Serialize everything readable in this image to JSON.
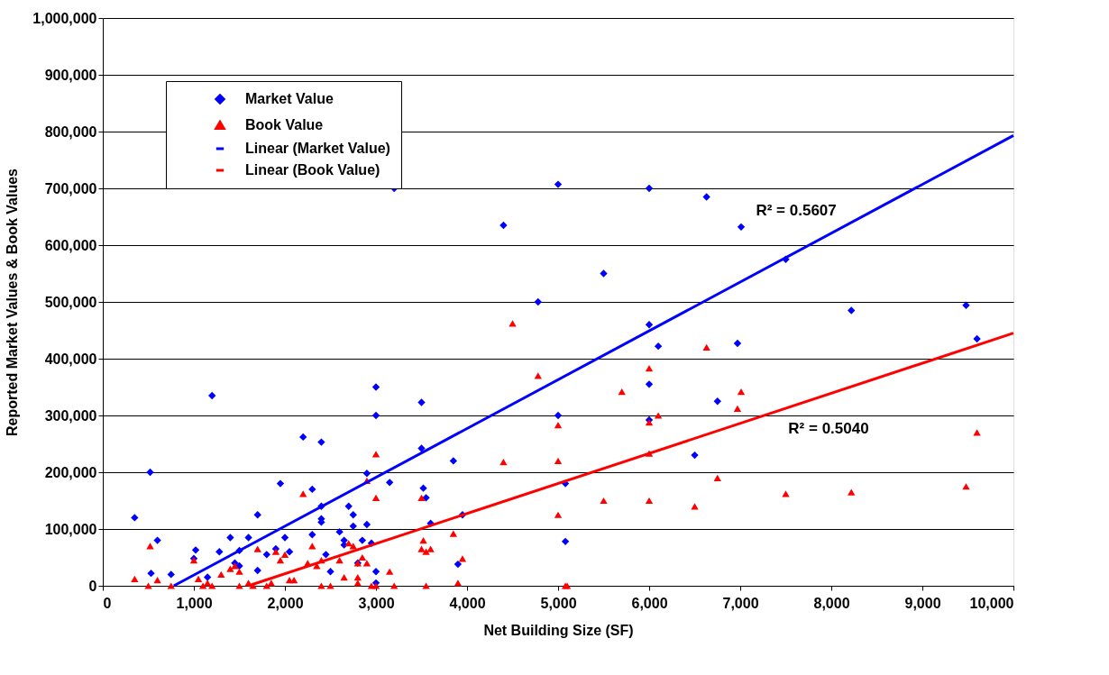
{
  "chart_data": {
    "type": "scatter",
    "xlabel": "Net Building Size (SF)",
    "ylabel": "Reported Market Values & Book Values",
    "xlim": [
      0,
      10000
    ],
    "xticks": [
      0,
      {
        "value": 1000,
        "label": "1,000"
      },
      {
        "value": 2000,
        "label": "2,000"
      },
      {
        "value": 3000,
        "label": "3,000"
      },
      {
        "value": 4000,
        "label": "4,000"
      },
      {
        "value": 5000,
        "label": "5,000"
      },
      {
        "value": 6000,
        "label": "6,000"
      },
      {
        "value": 7000,
        "label": "7,000"
      },
      {
        "value": 8000,
        "label": "8,000"
      },
      {
        "value": 9000,
        "label": "9,000"
      },
      {
        "value": 10000,
        "label": "10,000"
      }
    ],
    "ylim": [
      0,
      1000000
    ],
    "yticks": [
      0,
      {
        "value": 100000,
        "label": "100,000"
      },
      {
        "value": 200000,
        "label": "200,000"
      },
      {
        "value": 300000,
        "label": "300,000"
      },
      {
        "value": 400000,
        "label": "400,000"
      },
      {
        "value": 500000,
        "label": "500,000"
      },
      {
        "value": 600000,
        "label": "600,000"
      },
      {
        "value": 700000,
        "label": "700,000"
      },
      {
        "value": 800000,
        "label": "800,000"
      },
      {
        "value": 900000,
        "label": "900,000"
      },
      {
        "value": 1000000,
        "label": "1,000,000"
      }
    ],
    "grid": "y",
    "legend": "top left",
    "annotations": [
      "R² = 0.5607",
      "R² = 0.5040"
    ],
    "series": [
      {
        "name": "Market Value",
        "marker": "diamond",
        "color": "#0000ff",
        "x": [
          350,
          520,
          530,
          600,
          750,
          1000,
          1020,
          1200,
          1150,
          1280,
          1400,
          1450,
          1500,
          1500,
          1600,
          1700,
          1700,
          1800,
          1900,
          1950,
          2000,
          2050,
          2200,
          2300,
          2300,
          2400,
          2400,
          2400,
          2400,
          2450,
          2500,
          2600,
          2650,
          2650,
          2700,
          2750,
          2750,
          2800,
          2850,
          2900,
          2900,
          2950,
          3000,
          3000,
          3000,
          3000,
          3150,
          3200,
          3500,
          3500,
          3520,
          3550,
          3600,
          3850,
          3900,
          3950,
          4400,
          4780,
          5000,
          5000,
          5080,
          5080,
          5500,
          6000,
          6000,
          6000,
          6000,
          6100,
          6630,
          6970,
          7010,
          6750,
          6500,
          7500,
          8220,
          9480,
          9600
        ],
        "values": [
          120000,
          200000,
          22000,
          80000,
          20000,
          48000,
          63000,
          335000,
          15000,
          60000,
          85000,
          40000,
          35000,
          62000,
          85000,
          27000,
          125000,
          55000,
          65000,
          180000,
          85000,
          60000,
          262000,
          170000,
          90000,
          253000,
          140000,
          118000,
          112000,
          55000,
          25000,
          95000,
          80000,
          72000,
          140000,
          125000,
          105000,
          40000,
          80000,
          198000,
          108000,
          75000,
          350000,
          300000,
          25000,
          5000,
          182000,
          700000,
          323000,
          242000,
          172000,
          155000,
          110000,
          220000,
          38000,
          125000,
          635000,
          500000,
          707000,
          300000,
          78000,
          180000,
          550000,
          700000,
          460000,
          355000,
          292000,
          422000,
          685000,
          427000,
          632000,
          325000,
          230000,
          575000,
          485000,
          494000,
          435000
        ]
      },
      {
        "name": "Book Value",
        "marker": "triangle",
        "color": "#ff0000",
        "x": [
          350,
          500,
          520,
          600,
          750,
          1000,
          1050,
          1100,
          1150,
          1200,
          1300,
          1400,
          1450,
          1500,
          1500,
          1600,
          1650,
          1700,
          1800,
          1850,
          1900,
          1950,
          2000,
          2050,
          2100,
          2200,
          2250,
          2300,
          2350,
          2400,
          2400,
          2500,
          2600,
          2650,
          2700,
          2750,
          2800,
          2800,
          2800,
          2850,
          2900,
          2900,
          2950,
          3000,
          3000,
          3000,
          3150,
          3200,
          3500,
          3520,
          3500,
          3550,
          3600,
          3550,
          3850,
          3900,
          3950,
          4400,
          4500,
          4780,
          5000,
          5000,
          5000,
          5080,
          5100,
          5500,
          5700,
          6000,
          6000,
          6000,
          6000,
          6100,
          6630,
          6500,
          6750,
          6970,
          7010,
          7500,
          8220,
          9480,
          9600
        ],
        "values": [
          12000,
          0,
          70000,
          10000,
          0,
          45000,
          12000,
          0,
          5000,
          0,
          20000,
          30000,
          35000,
          25000,
          0,
          5000,
          0,
          65000,
          0,
          5000,
          60000,
          45000,
          55000,
          10000,
          10000,
          162000,
          40000,
          70000,
          35000,
          45000,
          0,
          0,
          45000,
          15000,
          75000,
          70000,
          40000,
          15000,
          5000,
          50000,
          185000,
          40000,
          0,
          232000,
          155000,
          0,
          25000,
          0,
          155000,
          80000,
          65000,
          60000,
          65000,
          0,
          92000,
          5000,
          48000,
          218000,
          462000,
          370000,
          283000,
          220000,
          125000,
          0,
          0,
          150000,
          342000,
          383000,
          288000,
          233000,
          150000,
          300000,
          420000,
          140000,
          190000,
          312000,
          342000,
          162000,
          165000,
          175000,
          270000
        ]
      },
      {
        "name": "Linear (Market Value)",
        "type": "line",
        "marker": "none",
        "color": "#0000ff",
        "x": [
          780,
          10000
        ],
        "values": [
          0,
          793000
        ]
      },
      {
        "name": "Linear (Book Value)",
        "type": "line",
        "marker": "none",
        "color": "#ff0000",
        "x": [
          1600,
          10000
        ],
        "values": [
          0,
          445000
        ]
      }
    ]
  }
}
